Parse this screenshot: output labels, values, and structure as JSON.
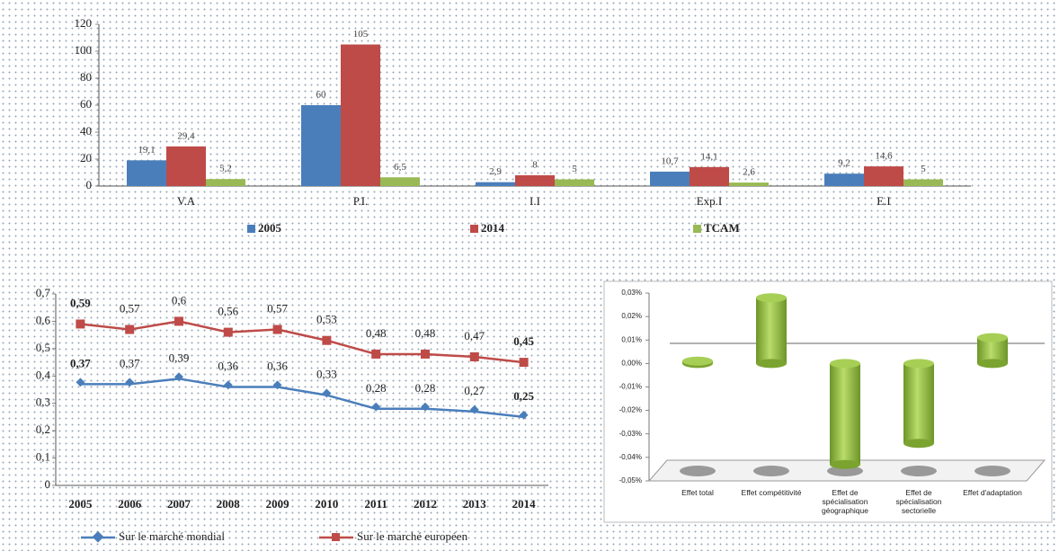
{
  "chart_data": [
    {
      "type": "bar",
      "categories": [
        "V.A",
        "P.I.",
        "I.I",
        "Exp.I",
        "E.I"
      ],
      "series": [
        {
          "name": "2005",
          "color": "#4a7ebb",
          "values": [
            19.1,
            60,
            2.9,
            10.7,
            9.2
          ],
          "value_labels": [
            "19,1",
            "60",
            "2,9",
            "10,7",
            "9,2"
          ]
        },
        {
          "name": "2014",
          "color": "#be4b48",
          "values": [
            29.4,
            105,
            8,
            14.1,
            14.6
          ],
          "value_labels": [
            "29,4",
            "105",
            "8",
            "14,1",
            "14,6"
          ]
        },
        {
          "name": "TCAM",
          "color": "#98b954",
          "values": [
            5.2,
            6.5,
            5,
            2.6,
            5
          ],
          "value_labels": [
            "5,2",
            "6,5",
            "5",
            "2,6",
            "5"
          ]
        }
      ],
      "ylim": [
        0,
        120
      ],
      "yticks": [
        0,
        20,
        40,
        60,
        80,
        100,
        120
      ]
    },
    {
      "type": "line",
      "categories": [
        "2005",
        "2006",
        "2007",
        "2008",
        "2009",
        "2010",
        "2011",
        "2012",
        "2013",
        "2014"
      ],
      "series": [
        {
          "name": "Sur le marché mondial",
          "color": "#4a7ebb",
          "values": [
            0.37,
            0.37,
            0.39,
            0.36,
            0.36,
            0.33,
            0.28,
            0.28,
            0.27,
            0.25
          ],
          "value_labels": [
            "0,37",
            "0,37",
            "0,39",
            "0,36",
            "0,36",
            "0,33",
            "0,28",
            "0,28",
            "0,27",
            "0,25"
          ]
        },
        {
          "name": "Sur le marché européen",
          "color": "#be4b48",
          "values": [
            0.59,
            0.57,
            0.6,
            0.56,
            0.57,
            0.53,
            0.48,
            0.48,
            0.47,
            0.45
          ],
          "value_labels": [
            "0,59",
            "0,57",
            "0,6",
            "0,56",
            "0,57",
            "0,53",
            "0,48",
            "0,48",
            "0,47",
            "0,45"
          ]
        }
      ],
      "ylim": [
        0,
        0.7
      ],
      "yticks": [
        0,
        {
          "value": 0.1,
          "label": "0,1"
        },
        {
          "value": 0.2,
          "label": "0,2"
        },
        {
          "value": 0.3,
          "label": "0,3"
        },
        {
          "value": 0.4,
          "label": "0,4"
        },
        {
          "value": 0.5,
          "label": "0,5"
        },
        {
          "value": 0.6,
          "label": "0,6"
        },
        {
          "value": 0.7,
          "label": "0,7"
        }
      ]
    },
    {
      "type": "cylinder",
      "categories": [
        "Effet total",
        "Effet compétitivité",
        "Effet de spécialisation géographique",
        "Effet de spécialisation sectorielle",
        "Effet d'adaptation"
      ],
      "values": [
        0.001,
        0.028,
        -0.043,
        -0.034,
        0.011
      ],
      "color": "#8cb83a",
      "ylim": [
        -0.05,
        0.03
      ],
      "yticks": [
        {
          "value": 0.03,
          "label": "0,03%"
        },
        {
          "value": 0.02,
          "label": "0,02%"
        },
        {
          "value": 0.01,
          "label": "0,01%"
        },
        {
          "value": 0,
          "label": "0,00%"
        },
        {
          "value": -0.01,
          "label": "-0,01%"
        },
        {
          "value": -0.02,
          "label": "-0,02%"
        },
        {
          "value": -0.03,
          "label": "-0,03%"
        },
        {
          "value": -0.04,
          "label": "-0,04%"
        },
        {
          "value": -0.05,
          "label": "-0,05%"
        }
      ]
    }
  ]
}
